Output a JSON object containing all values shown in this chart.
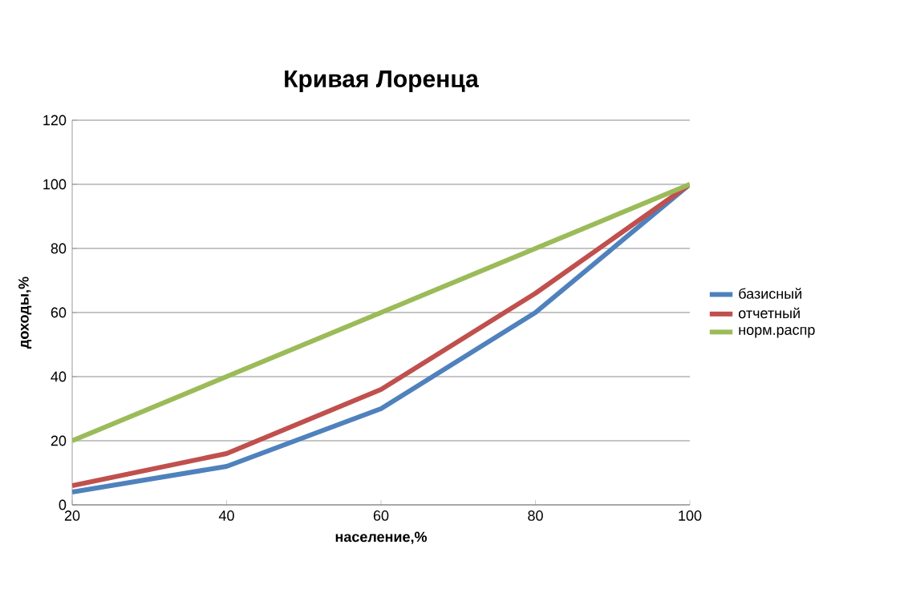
{
  "chart_data": {
    "type": "line",
    "title": "Кривая Лоренца",
    "xlabel": "население,%",
    "ylabel": "доходы,%",
    "x": [
      20,
      40,
      60,
      80,
      100
    ],
    "series": [
      {
        "name": "базисный",
        "color": "#4f81bd",
        "values": [
          4,
          12,
          30,
          60,
          100
        ]
      },
      {
        "name": "отчетный",
        "color": "#c0504d",
        "values": [
          6,
          16,
          36,
          66,
          100
        ]
      },
      {
        "name": "норм.распр",
        "color": "#9bbb59",
        "values": [
          20,
          40,
          60,
          80,
          100
        ]
      }
    ],
    "xlim": [
      20,
      100
    ],
    "xticks": [
      20,
      40,
      60,
      80,
      100
    ],
    "ylim": [
      0,
      120
    ],
    "yticks": [
      0,
      20,
      40,
      60,
      80,
      100,
      120
    ],
    "grid": "y",
    "legend": "right",
    "marker": "none",
    "line_style": "solid"
  }
}
